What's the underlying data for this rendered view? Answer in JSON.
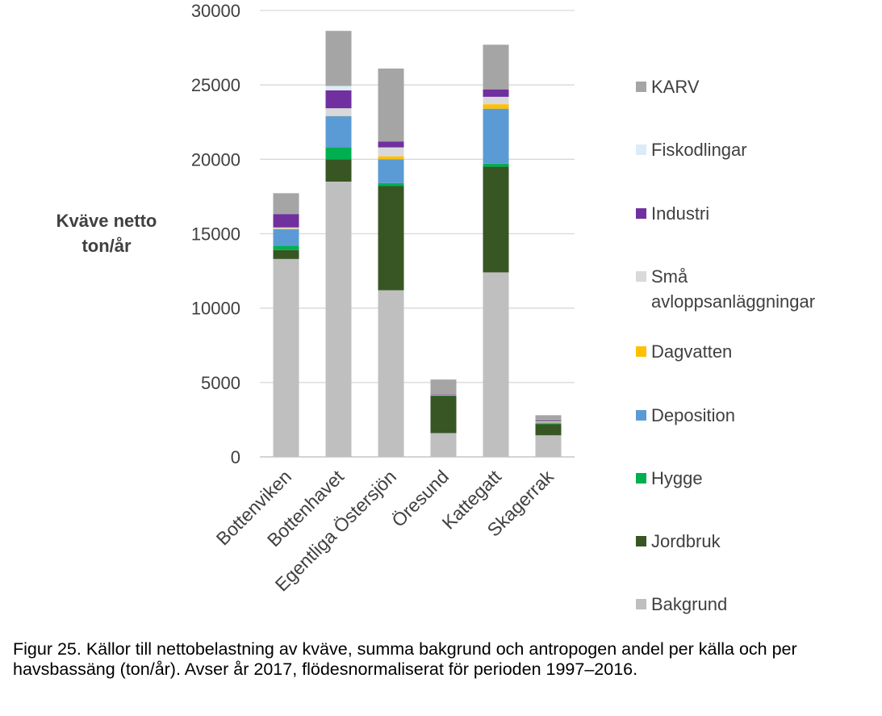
{
  "chart_data": {
    "type": "bar",
    "stacked": true,
    "ylabel_lines": [
      "Kväve netto",
      "ton/år"
    ],
    "ylim": [
      0,
      30000
    ],
    "yticks": [
      0,
      5000,
      10000,
      15000,
      20000,
      25000,
      30000
    ],
    "ytick_labels": [
      "0",
      "5000",
      "10000",
      "15000",
      "20000",
      "25000",
      "30000"
    ],
    "grid": true,
    "legend_position": "right",
    "categories": [
      "Bottenviken",
      "Bottenhavet",
      "Egentliga Östersjön",
      "Öresund",
      "Kattegatt",
      "Skagerrak"
    ],
    "series": [
      {
        "name": "Bakgrund",
        "color": "#bfbfbf",
        "values": [
          13300,
          18500,
          11200,
          1600,
          12400,
          1450
        ]
      },
      {
        "name": "Jordbruk",
        "color": "#375623",
        "values": [
          600,
          1500,
          7000,
          2500,
          7100,
          750
        ]
      },
      {
        "name": "Hygge",
        "color": "#00b050",
        "values": [
          300,
          800,
          200,
          20,
          200,
          40
        ]
      },
      {
        "name": "Deposition",
        "color": "#5b9bd5",
        "values": [
          1100,
          2100,
          1600,
          40,
          3700,
          80
        ]
      },
      {
        "name": "Dagvatten",
        "color": "#ffc000",
        "values": [
          20,
          30,
          200,
          10,
          300,
          20
        ]
      },
      {
        "name": "Små avloppsanläggningar",
        "color": "#d9d9d9",
        "values": [
          100,
          500,
          600,
          30,
          500,
          50
        ]
      },
      {
        "name": "Industri",
        "color": "#7030a0",
        "values": [
          900,
          1200,
          400,
          40,
          500,
          50
        ]
      },
      {
        "name": "Fiskodlingar",
        "color": "#ddebf7",
        "values": [
          0,
          300,
          0,
          0,
          0,
          0
        ]
      },
      {
        "name": "KARV",
        "color": "#a5a5a5",
        "values": [
          1400,
          3700,
          4900,
          960,
          3000,
          360
        ]
      }
    ]
  },
  "legend": {
    "items": [
      {
        "lines": [
          "KARV"
        ],
        "color": "#a5a5a5"
      },
      {
        "lines": [
          "Fiskodlingar"
        ],
        "color": "#ddebf7"
      },
      {
        "lines": [
          "Industri"
        ],
        "color": "#7030a0"
      },
      {
        "lines": [
          "Små",
          "avloppsanläggningar"
        ],
        "color": "#d9d9d9"
      },
      {
        "lines": [
          "Dagvatten"
        ],
        "color": "#ffc000"
      },
      {
        "lines": [
          "Deposition"
        ],
        "color": "#5b9bd5"
      },
      {
        "lines": [
          "Hygge"
        ],
        "color": "#00b050"
      },
      {
        "lines": [
          "Jordbruk"
        ],
        "color": "#375623"
      },
      {
        "lines": [
          "Bakgrund"
        ],
        "color": "#bfbfbf"
      }
    ]
  },
  "caption": "Figur 25. Källor till nettobelastning av kväve, summa bakgrund och antropogen andel per källa och per havsbassäng (ton/år). Avser år 2017, flödesnormaliserat för perioden 1997–2016."
}
